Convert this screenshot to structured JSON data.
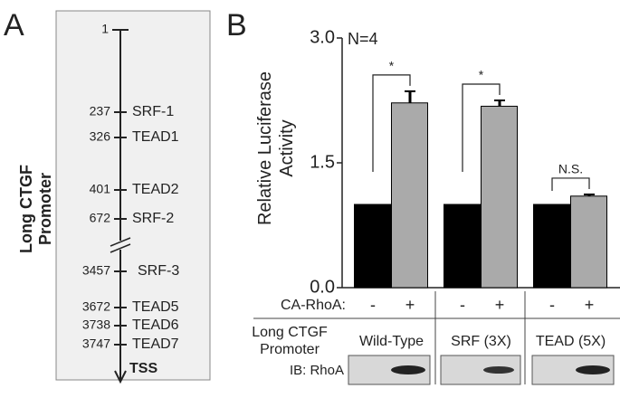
{
  "panel_a": {
    "label": "A",
    "title": "Long CTGF Promoter",
    "start": 1,
    "sites": [
      {
        "position": 237,
        "name": "SRF-1"
      },
      {
        "position": 326,
        "name": "TEAD1"
      },
      {
        "position": 401,
        "name": "TEAD2"
      },
      {
        "position": 672,
        "name": "SRF-2"
      },
      {
        "position": 3457,
        "name": "SRF-3"
      },
      {
        "position": 3672,
        "name": "TEAD5"
      },
      {
        "position": 3738,
        "name": "TEAD6"
      },
      {
        "position": 3747,
        "name": "TEAD7"
      }
    ],
    "end": "TSS"
  },
  "chart_data": {
    "type": "bar",
    "panel_label": "B",
    "ylabel": "Relative Luciferase Activity",
    "annotation": "N=4",
    "categories": [
      "Wild-Type",
      "SRF (3X)",
      "TEAD (5X)"
    ],
    "series": [
      {
        "name": "-",
        "color": "#000000",
        "values": [
          1.0,
          1.0,
          1.0
        ]
      },
      {
        "name": "+",
        "color": "#aaaaaa",
        "values": [
          2.22,
          2.18,
          1.1
        ],
        "errors": [
          0.14,
          0.07,
          0.02
        ]
      }
    ],
    "significance": [
      "*",
      "*",
      "N.S."
    ],
    "ylim": [
      0,
      3
    ],
    "yticks": [
      {
        "value": 0,
        "label": "0.0"
      },
      {
        "value": 1.5,
        "label": "1.5"
      },
      {
        "value": 3,
        "label": "3.0"
      }
    ],
    "treatment_label": "CA-RhoA:",
    "group_label": "Long CTGF Promoter",
    "blot_label": "IB: RhoA"
  }
}
